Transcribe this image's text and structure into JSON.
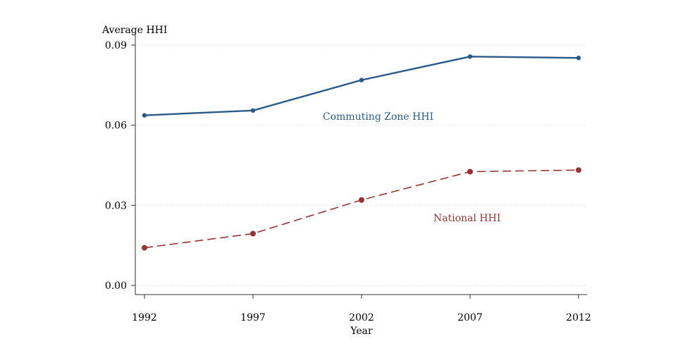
{
  "chart_data": {
    "type": "line",
    "title": "",
    "xlabel": "Year",
    "ylabel": "Average HHI",
    "x": [
      1992,
      1997,
      2002,
      2007,
      2012
    ],
    "x_tick_labels": [
      "1992",
      "1997",
      "2002",
      "2007",
      "2012"
    ],
    "y_ticks": [
      0.0,
      0.03,
      0.06,
      0.09
    ],
    "y_tick_labels": [
      "0.00",
      "0.03",
      "0.06",
      "0.09"
    ],
    "ylim": [
      -0.003,
      0.09
    ],
    "xlim": [
      1992,
      2012
    ],
    "grid": "horizontal dotted",
    "series": [
      {
        "name": "Commuting Zone HHI",
        "values": [
          0.0637,
          0.0655,
          0.0769,
          0.0857,
          0.0852
        ],
        "color": "#2a5a8a",
        "style": "solid"
      },
      {
        "name": "National HHI",
        "values": [
          0.0141,
          0.0194,
          0.032,
          0.0426,
          0.0432
        ],
        "color": "#993333",
        "style": "dashed"
      }
    ]
  }
}
